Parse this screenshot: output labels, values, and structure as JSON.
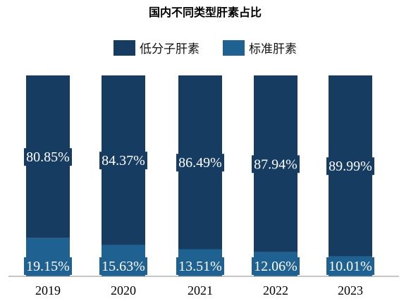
{
  "chart_data": {
    "type": "bar",
    "stacked": true,
    "normalized_100": true,
    "title": "国内不同类型肝素占比",
    "categories": [
      "2019",
      "2020",
      "2021",
      "2022",
      "2023"
    ],
    "series": [
      {
        "name": "低分子肝素",
        "values": [
          80.85,
          84.37,
          86.49,
          87.94,
          89.99
        ],
        "labels": [
          "80.85%",
          "84.37%",
          "86.49%",
          "87.94%",
          "89.99%"
        ]
      },
      {
        "name": "标准肝素",
        "values": [
          19.15,
          15.63,
          13.51,
          12.06,
          10.01
        ],
        "labels": [
          "19.15%",
          "15.63%",
          "13.51%",
          "12.06%",
          "10.01%"
        ]
      }
    ],
    "ylim": [
      0,
      100
    ],
    "grid": false,
    "legend_position": "top-center",
    "colors": {
      "低分子肝素": "#163d61",
      "标准肝素": "#1f6191",
      "axis": "#8c8c8c"
    }
  }
}
